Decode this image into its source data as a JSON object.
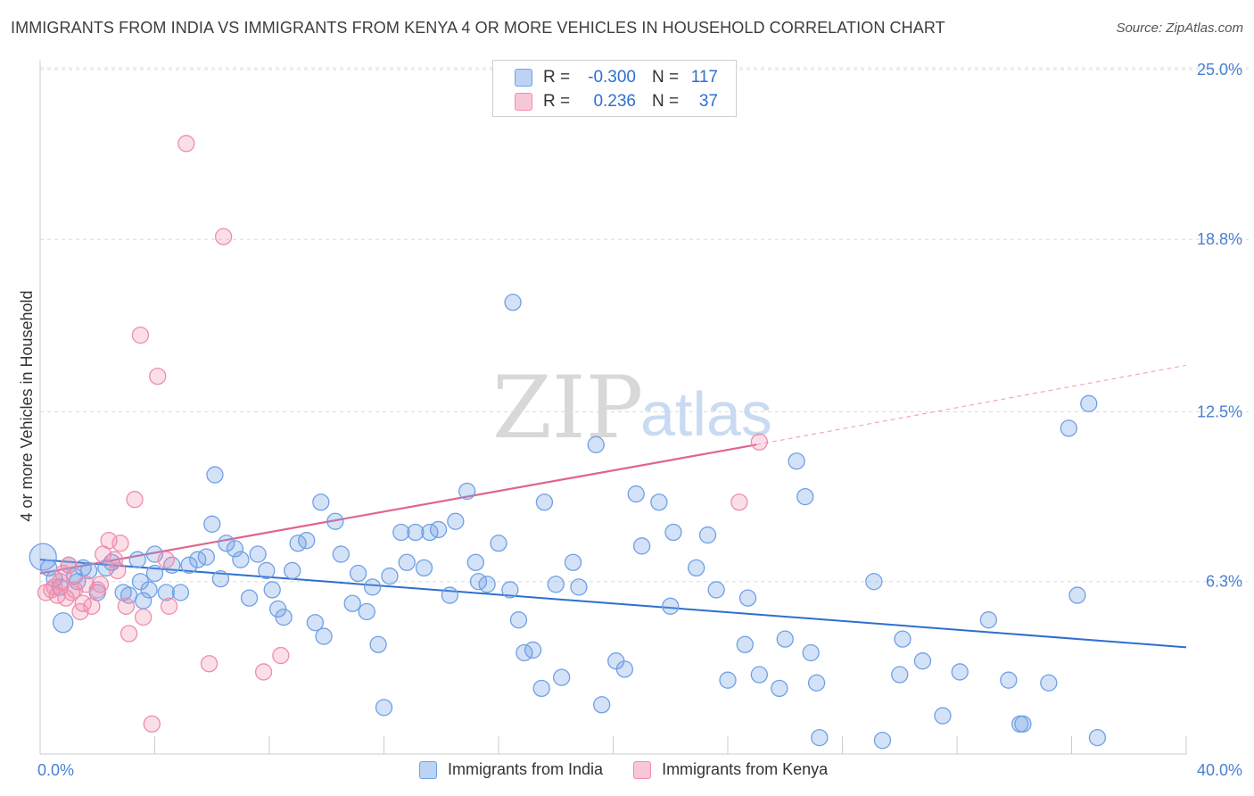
{
  "title": "IMMIGRANTS FROM INDIA VS IMMIGRANTS FROM KENYA 4 OR MORE VEHICLES IN HOUSEHOLD CORRELATION CHART",
  "source": "Source: ZipAtlas.com",
  "watermark": {
    "zip": "ZIP",
    "atlas": "atlas"
  },
  "legend": {
    "rows": [
      {
        "r_label": "R =",
        "r_value": "-0.300",
        "n_label": "N =",
        "n_value": "117"
      },
      {
        "r_label": "R =",
        "r_value": "0.236",
        "n_label": "N =",
        "n_value": "37"
      }
    ]
  },
  "chart_data": {
    "type": "scatter",
    "title": "IMMIGRANTS FROM INDIA VS IMMIGRANTS FROM KENYA 4 OR MORE VEHICLES IN HOUSEHOLD CORRELATION CHART",
    "xlabel": "",
    "ylabel": "4 or more Vehicles in Household",
    "xlim": [
      0,
      40
    ],
    "ylim": [
      0,
      25
    ],
    "x_tick_labels": [
      "0.0%",
      "40.0%"
    ],
    "y_ticks": [
      6.3,
      12.5,
      18.8,
      25.0
    ],
    "y_tick_labels": [
      "6.3%",
      "12.5%",
      "18.8%",
      "25.0%"
    ],
    "grid": true,
    "legend_position": "top-center",
    "colors": {
      "india": "#6fa0e6",
      "india_line": "#2d6fcf",
      "kenya": "#f08cab",
      "kenya_line": "#e0648c"
    },
    "series": [
      {
        "name": "Immigrants from India",
        "r": -0.3,
        "n": 117,
        "trend": {
          "x": [
            0,
            40
          ],
          "y": [
            7.1,
            3.9
          ]
        },
        "points": [
          [
            0.1,
            7.2
          ],
          [
            0.3,
            6.8
          ],
          [
            0.5,
            6.4
          ],
          [
            0.7,
            6.1
          ],
          [
            0.8,
            4.8
          ],
          [
            1.0,
            6.9
          ],
          [
            1.2,
            6.5
          ],
          [
            1.3,
            6.3
          ],
          [
            1.5,
            6.8
          ],
          [
            1.7,
            6.7
          ],
          [
            2.0,
            5.9
          ],
          [
            2.3,
            6.8
          ],
          [
            2.5,
            7.0
          ],
          [
            2.9,
            5.9
          ],
          [
            3.1,
            5.8
          ],
          [
            3.4,
            7.1
          ],
          [
            3.5,
            6.3
          ],
          [
            3.6,
            5.6
          ],
          [
            3.8,
            6.0
          ],
          [
            4.0,
            6.6
          ],
          [
            4.0,
            7.3
          ],
          [
            4.4,
            5.9
          ],
          [
            4.6,
            6.9
          ],
          [
            4.9,
            5.9
          ],
          [
            5.2,
            6.9
          ],
          [
            5.5,
            7.1
          ],
          [
            5.8,
            7.2
          ],
          [
            6.0,
            8.4
          ],
          [
            6.1,
            10.2
          ],
          [
            6.3,
            6.4
          ],
          [
            6.5,
            7.7
          ],
          [
            6.8,
            7.5
          ],
          [
            7.0,
            7.1
          ],
          [
            7.3,
            5.7
          ],
          [
            7.6,
            7.3
          ],
          [
            7.9,
            6.7
          ],
          [
            8.1,
            6.0
          ],
          [
            8.3,
            5.3
          ],
          [
            8.5,
            5.0
          ],
          [
            8.8,
            6.7
          ],
          [
            9.0,
            7.7
          ],
          [
            9.3,
            7.8
          ],
          [
            9.6,
            4.8
          ],
          [
            9.8,
            9.2
          ],
          [
            9.9,
            4.3
          ],
          [
            10.3,
            8.5
          ],
          [
            10.5,
            7.3
          ],
          [
            10.9,
            5.5
          ],
          [
            11.1,
            6.6
          ],
          [
            11.4,
            5.2
          ],
          [
            11.6,
            6.1
          ],
          [
            11.8,
            4.0
          ],
          [
            12.0,
            1.7
          ],
          [
            12.2,
            6.5
          ],
          [
            12.6,
            8.1
          ],
          [
            12.8,
            7.0
          ],
          [
            13.1,
            8.1
          ],
          [
            13.4,
            6.8
          ],
          [
            13.6,
            8.1
          ],
          [
            13.9,
            8.2
          ],
          [
            14.3,
            5.8
          ],
          [
            14.5,
            8.5
          ],
          [
            14.9,
            9.6
          ],
          [
            15.2,
            7.0
          ],
          [
            15.3,
            6.3
          ],
          [
            15.6,
            6.2
          ],
          [
            16.0,
            7.7
          ],
          [
            16.4,
            6.0
          ],
          [
            16.7,
            4.9
          ],
          [
            16.9,
            3.7
          ],
          [
            17.2,
            3.8
          ],
          [
            17.5,
            2.4
          ],
          [
            17.6,
            9.2
          ],
          [
            18.0,
            6.2
          ],
          [
            18.2,
            2.8
          ],
          [
            18.6,
            7.0
          ],
          [
            18.8,
            6.1
          ],
          [
            19.4,
            11.3
          ],
          [
            19.6,
            1.8
          ],
          [
            20.1,
            3.4
          ],
          [
            20.4,
            3.1
          ],
          [
            20.8,
            9.5
          ],
          [
            21.0,
            7.6
          ],
          [
            21.6,
            9.2
          ],
          [
            22.0,
            5.4
          ],
          [
            22.1,
            8.1
          ],
          [
            22.9,
            6.8
          ],
          [
            23.3,
            8.0
          ],
          [
            23.6,
            6.0
          ],
          [
            24.0,
            2.7
          ],
          [
            24.6,
            4.0
          ],
          [
            24.7,
            5.7
          ],
          [
            25.1,
            2.9
          ],
          [
            25.8,
            2.4
          ],
          [
            26.0,
            4.2
          ],
          [
            26.7,
            9.4
          ],
          [
            26.4,
            10.7
          ],
          [
            26.9,
            3.7
          ],
          [
            27.1,
            2.6
          ],
          [
            27.2,
            0.6
          ],
          [
            29.1,
            6.3
          ],
          [
            29.4,
            0.5
          ],
          [
            30.0,
            2.9
          ],
          [
            30.1,
            4.2
          ],
          [
            30.8,
            3.4
          ],
          [
            31.5,
            1.4
          ],
          [
            32.1,
            3.0
          ],
          [
            33.1,
            4.9
          ],
          [
            33.8,
            2.7
          ],
          [
            34.2,
            1.1
          ],
          [
            34.3,
            1.1
          ],
          [
            35.2,
            2.6
          ],
          [
            35.9,
            11.9
          ],
          [
            36.2,
            5.8
          ],
          [
            36.6,
            12.8
          ],
          [
            36.9,
            0.6
          ],
          [
            16.5,
            16.5
          ]
        ]
      },
      {
        "name": "Immigrants from Kenya",
        "r": 0.236,
        "n": 37,
        "trend": {
          "x": [
            0,
            25
          ],
          "y": [
            6.6,
            11.3
          ],
          "extension": {
            "x": [
              25,
              40
            ],
            "y": [
              11.3,
              14.2
            ]
          }
        },
        "points": [
          [
            0.2,
            5.9
          ],
          [
            0.4,
            6.0
          ],
          [
            0.5,
            6.1
          ],
          [
            0.6,
            5.8
          ],
          [
            0.7,
            6.3
          ],
          [
            0.8,
            6.6
          ],
          [
            0.9,
            5.7
          ],
          [
            1.0,
            6.9
          ],
          [
            1.1,
            5.9
          ],
          [
            1.2,
            6.0
          ],
          [
            1.4,
            5.2
          ],
          [
            1.5,
            5.5
          ],
          [
            1.6,
            6.2
          ],
          [
            1.8,
            5.4
          ],
          [
            2.0,
            6.0
          ],
          [
            2.1,
            6.2
          ],
          [
            2.2,
            7.3
          ],
          [
            2.4,
            7.8
          ],
          [
            2.6,
            7.1
          ],
          [
            2.7,
            6.7
          ],
          [
            2.8,
            7.7
          ],
          [
            3.0,
            5.4
          ],
          [
            3.1,
            4.4
          ],
          [
            3.3,
            9.3
          ],
          [
            3.5,
            15.3
          ],
          [
            3.6,
            5.0
          ],
          [
            3.9,
            1.1
          ],
          [
            4.1,
            13.8
          ],
          [
            4.4,
            7.1
          ],
          [
            4.5,
            5.4
          ],
          [
            5.1,
            22.3
          ],
          [
            5.9,
            3.3
          ],
          [
            6.4,
            18.9
          ],
          [
            7.8,
            3.0
          ],
          [
            8.4,
            3.6
          ],
          [
            24.4,
            9.2
          ],
          [
            25.1,
            11.4
          ]
        ]
      }
    ]
  }
}
